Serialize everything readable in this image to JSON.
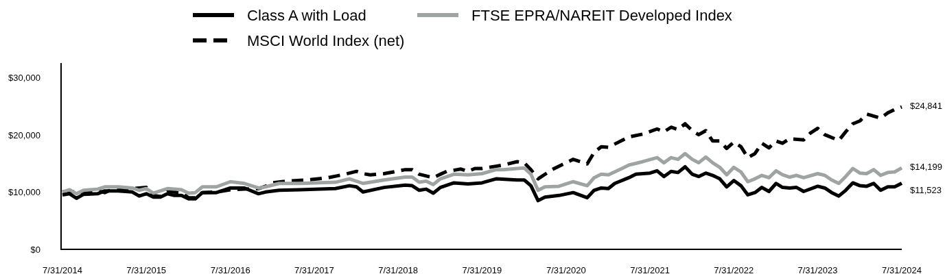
{
  "chart_data": {
    "type": "line",
    "xlim": [
      "2014-07-31",
      "2024-07-31"
    ],
    "xticks": [
      {
        "value": "2014-07-31",
        "label": "7/31/2014"
      },
      {
        "value": "2015-07-31",
        "label": "7/31/2015"
      },
      {
        "value": "2016-07-31",
        "label": "7/31/2016"
      },
      {
        "value": "2017-07-31",
        "label": "7/31/2017"
      },
      {
        "value": "2018-07-31",
        "label": "7/31/2018"
      },
      {
        "value": "2019-07-31",
        "label": "7/31/2019"
      },
      {
        "value": "2020-07-31",
        "label": "7/31/2020"
      },
      {
        "value": "2021-07-31",
        "label": "7/31/2021"
      },
      {
        "value": "2022-07-31",
        "label": "7/31/2022"
      },
      {
        "value": "2023-07-31",
        "label": "7/31/2023"
      },
      {
        "value": "2024-07-31",
        "label": "7/31/2024"
      }
    ],
    "ylim": [
      0,
      32500
    ],
    "yticks": [
      {
        "value": 0,
        "label": "$0"
      },
      {
        "value": 10000,
        "label": "$10,000"
      },
      {
        "value": 20000,
        "label": "$20,000"
      },
      {
        "value": 30000,
        "label": "$30,000"
      }
    ],
    "legend": "top",
    "series": [
      {
        "name": "Class A with Load",
        "color": "#000000",
        "line_style": "solid",
        "x": [
          "2014-07-31",
          "2014-08-31",
          "2014-09-30",
          "2014-10-31",
          "2014-12-31",
          "2015-01-31",
          "2015-03-31",
          "2015-05-31",
          "2015-06-30",
          "2015-07-31",
          "2015-08-31",
          "2015-09-30",
          "2015-10-31",
          "2015-11-30",
          "2015-12-31",
          "2016-01-31",
          "2016-02-29",
          "2016-03-31",
          "2016-05-31",
          "2016-07-31",
          "2016-09-30",
          "2016-11-30",
          "2016-12-31",
          "2017-02-28",
          "2017-05-31",
          "2017-10-31",
          "2017-12-31",
          "2018-01-31",
          "2018-02-28",
          "2018-05-31",
          "2018-08-31",
          "2018-09-30",
          "2018-10-31",
          "2018-11-30",
          "2018-12-31",
          "2019-01-31",
          "2019-03-31",
          "2019-05-31",
          "2019-07-31",
          "2019-09-30",
          "2019-12-31",
          "2020-01-31",
          "2020-02-29",
          "2020-03-31",
          "2020-04-30",
          "2020-06-30",
          "2020-08-31",
          "2020-10-31",
          "2020-11-30",
          "2020-12-31",
          "2021-01-31",
          "2021-02-28",
          "2021-04-30",
          "2021-05-31",
          "2021-07-31",
          "2021-08-31",
          "2021-09-30",
          "2021-10-31",
          "2021-11-30",
          "2021-12-31",
          "2022-01-31",
          "2022-02-28",
          "2022-03-31",
          "2022-04-30",
          "2022-05-31",
          "2022-06-30",
          "2022-07-31",
          "2022-08-31",
          "2022-09-30",
          "2022-10-31",
          "2022-11-30",
          "2022-12-31",
          "2023-01-31",
          "2023-02-28",
          "2023-03-31",
          "2023-04-30",
          "2023-05-31",
          "2023-07-31",
          "2023-08-31",
          "2023-09-30",
          "2023-10-31",
          "2023-11-30",
          "2023-12-31",
          "2024-01-31",
          "2024-02-29",
          "2024-03-31",
          "2024-04-30",
          "2024-05-31",
          "2024-06-30",
          "2024-07-31"
        ],
        "values": [
          9500,
          9700,
          8900,
          9600,
          9700,
          10200,
          10200,
          10000,
          9300,
          9700,
          9100,
          9100,
          9700,
          9400,
          9400,
          8800,
          8800,
          9900,
          9900,
          10700,
          10700,
          9700,
          10000,
          10300,
          10400,
          10600,
          11100,
          10900,
          10000,
          10800,
          11200,
          11100,
          10300,
          10500,
          9800,
          10800,
          11600,
          11400,
          11600,
          12300,
          12100,
          12100,
          11100,
          8500,
          9100,
          9400,
          9900,
          9000,
          10300,
          10700,
          10600,
          11500,
          12500,
          13100,
          13300,
          13700,
          12700,
          13600,
          13400,
          14400,
          13100,
          12700,
          13300,
          12900,
          12300,
          10900,
          12000,
          11100,
          9500,
          9900,
          10800,
          10100,
          11500,
          10800,
          10700,
          10800,
          10100,
          11000,
          10700,
          9900,
          9300,
          10300,
          11600,
          11100,
          11000,
          11500,
          10300,
          10900,
          10900,
          11523
        ]
      },
      {
        "name": "FTSE EPRA/NAREIT Developed Index",
        "color": "#9fa4a2",
        "line_style": "solid",
        "x": [
          "2014-07-31",
          "2014-08-31",
          "2014-09-30",
          "2014-10-31",
          "2014-12-31",
          "2015-01-31",
          "2015-03-31",
          "2015-05-31",
          "2015-06-30",
          "2015-07-31",
          "2015-08-31",
          "2015-10-31",
          "2015-12-31",
          "2016-01-31",
          "2016-02-29",
          "2016-03-31",
          "2016-05-31",
          "2016-07-31",
          "2016-09-30",
          "2016-11-30",
          "2016-12-31",
          "2017-02-28",
          "2017-05-31",
          "2017-10-31",
          "2017-12-31",
          "2018-02-28",
          "2018-05-31",
          "2018-08-31",
          "2018-09-30",
          "2018-10-31",
          "2018-11-30",
          "2018-12-31",
          "2019-01-31",
          "2019-03-31",
          "2019-05-31",
          "2019-07-31",
          "2019-09-30",
          "2019-10-31",
          "2019-12-31",
          "2020-01-31",
          "2020-02-29",
          "2020-03-31",
          "2020-04-30",
          "2020-06-30",
          "2020-08-31",
          "2020-10-31",
          "2020-11-30",
          "2020-12-31",
          "2021-01-31",
          "2021-03-31",
          "2021-04-30",
          "2021-06-30",
          "2021-08-31",
          "2021-09-30",
          "2021-10-31",
          "2021-11-30",
          "2021-12-31",
          "2022-01-31",
          "2022-02-28",
          "2022-03-31",
          "2022-04-30",
          "2022-05-31",
          "2022-06-30",
          "2022-07-31",
          "2022-08-31",
          "2022-09-30",
          "2022-10-31",
          "2022-11-30",
          "2022-12-31",
          "2023-01-31",
          "2023-02-28",
          "2023-03-31",
          "2023-04-30",
          "2023-05-31",
          "2023-07-31",
          "2023-08-31",
          "2023-09-30",
          "2023-10-31",
          "2023-11-30",
          "2023-12-31",
          "2024-01-31",
          "2024-02-29",
          "2024-03-31",
          "2024-04-30",
          "2024-05-31",
          "2024-06-30",
          "2024-07-31"
        ],
        "values": [
          10000,
          10400,
          9700,
          10300,
          10500,
          10900,
          10900,
          10700,
          10300,
          10600,
          9800,
          10600,
          10400,
          9800,
          9900,
          10900,
          10900,
          11800,
          11500,
          10700,
          10900,
          11500,
          11500,
          11700,
          12300,
          11500,
          12100,
          12600,
          12600,
          11700,
          11900,
          11300,
          12300,
          13100,
          13000,
          13200,
          13900,
          13900,
          14100,
          14200,
          13100,
          10300,
          10900,
          11000,
          11800,
          11100,
          12500,
          13100,
          13000,
          14100,
          14700,
          15300,
          16000,
          15100,
          16000,
          15700,
          16700,
          15700,
          15100,
          16100,
          15100,
          14300,
          13000,
          14300,
          13500,
          11800,
          12300,
          12900,
          12500,
          13700,
          13000,
          12600,
          12900,
          12500,
          13200,
          12900,
          12100,
          11500,
          12700,
          14100,
          13300,
          13200,
          13900,
          12900,
          13400,
          13500,
          14199
        ]
      },
      {
        "name": "MSCI World Index (net)",
        "color": "#000000",
        "line_style": "dashed",
        "x": [
          "2014-07-31",
          "2014-08-31",
          "2014-09-30",
          "2014-10-31",
          "2014-12-31",
          "2015-01-31",
          "2015-02-28",
          "2015-03-31",
          "2015-05-31",
          "2015-06-30",
          "2015-07-31",
          "2015-08-31",
          "2015-09-30",
          "2015-10-31",
          "2015-12-31",
          "2016-01-31",
          "2016-02-29",
          "2016-03-31",
          "2016-05-31",
          "2016-07-31",
          "2016-09-30",
          "2016-11-30",
          "2016-12-31",
          "2017-01-31",
          "2017-03-31",
          "2017-06-30",
          "2017-09-30",
          "2017-11-30",
          "2018-01-31",
          "2018-02-28",
          "2018-03-31",
          "2018-05-31",
          "2018-08-31",
          "2018-09-30",
          "2018-10-31",
          "2018-12-31",
          "2019-01-31",
          "2019-02-28",
          "2019-04-30",
          "2019-05-31",
          "2019-06-30",
          "2019-07-31",
          "2019-09-30",
          "2019-10-31",
          "2019-12-31",
          "2020-01-31",
          "2020-02-29",
          "2020-03-31",
          "2020-05-31",
          "2020-08-31",
          "2020-10-31",
          "2020-11-30",
          "2020-12-31",
          "2021-01-31",
          "2021-04-30",
          "2021-06-30",
          "2021-08-31",
          "2021-09-30",
          "2021-10-31",
          "2021-11-30",
          "2021-12-31",
          "2022-01-31",
          "2022-02-28",
          "2022-03-31",
          "2022-04-30",
          "2022-05-31",
          "2022-06-30",
          "2022-07-31",
          "2022-08-31",
          "2022-09-30",
          "2022-10-31",
          "2022-11-30",
          "2022-12-31",
          "2023-01-31",
          "2023-02-28",
          "2023-03-31",
          "2023-05-31",
          "2023-06-30",
          "2023-07-31",
          "2023-08-31",
          "2023-10-31",
          "2023-11-30",
          "2023-12-31",
          "2024-01-31",
          "2024-02-29",
          "2024-04-30",
          "2024-05-31",
          "2024-06-30",
          "2024-07-31"
        ],
        "values": [
          10000,
          10200,
          9900,
          10000,
          10200,
          9900,
          10400,
          10300,
          10600,
          10700,
          10800,
          9400,
          9200,
          10100,
          9900,
          9000,
          9000,
          9900,
          10000,
          10400,
          10500,
          10600,
          11000,
          11600,
          11900,
          12100,
          12500,
          13000,
          13600,
          13200,
          13000,
          13200,
          13900,
          13900,
          13100,
          12500,
          13100,
          13600,
          14000,
          13600,
          14100,
          14100,
          14500,
          14700,
          15300,
          15100,
          13900,
          12300,
          13900,
          15700,
          14900,
          16900,
          17900,
          17800,
          19600,
          20100,
          21000,
          20500,
          21300,
          20900,
          21900,
          20700,
          20000,
          20700,
          18900,
          18900,
          17600,
          18700,
          17900,
          16000,
          16700,
          18500,
          17700,
          18900,
          18500,
          19300,
          19100,
          20300,
          21100,
          20000,
          19000,
          20500,
          21900,
          22400,
          23600,
          22900,
          23800,
          24400,
          24841
        ]
      }
    ],
    "annotations": [
      {
        "text": "$24,841",
        "x": "2024-07-31",
        "y": 24841
      },
      {
        "text": "$14,199",
        "x": "2024-07-31",
        "y": 14199
      },
      {
        "text": "$11,523",
        "x": "2024-07-31",
        "y": 11523
      }
    ]
  }
}
